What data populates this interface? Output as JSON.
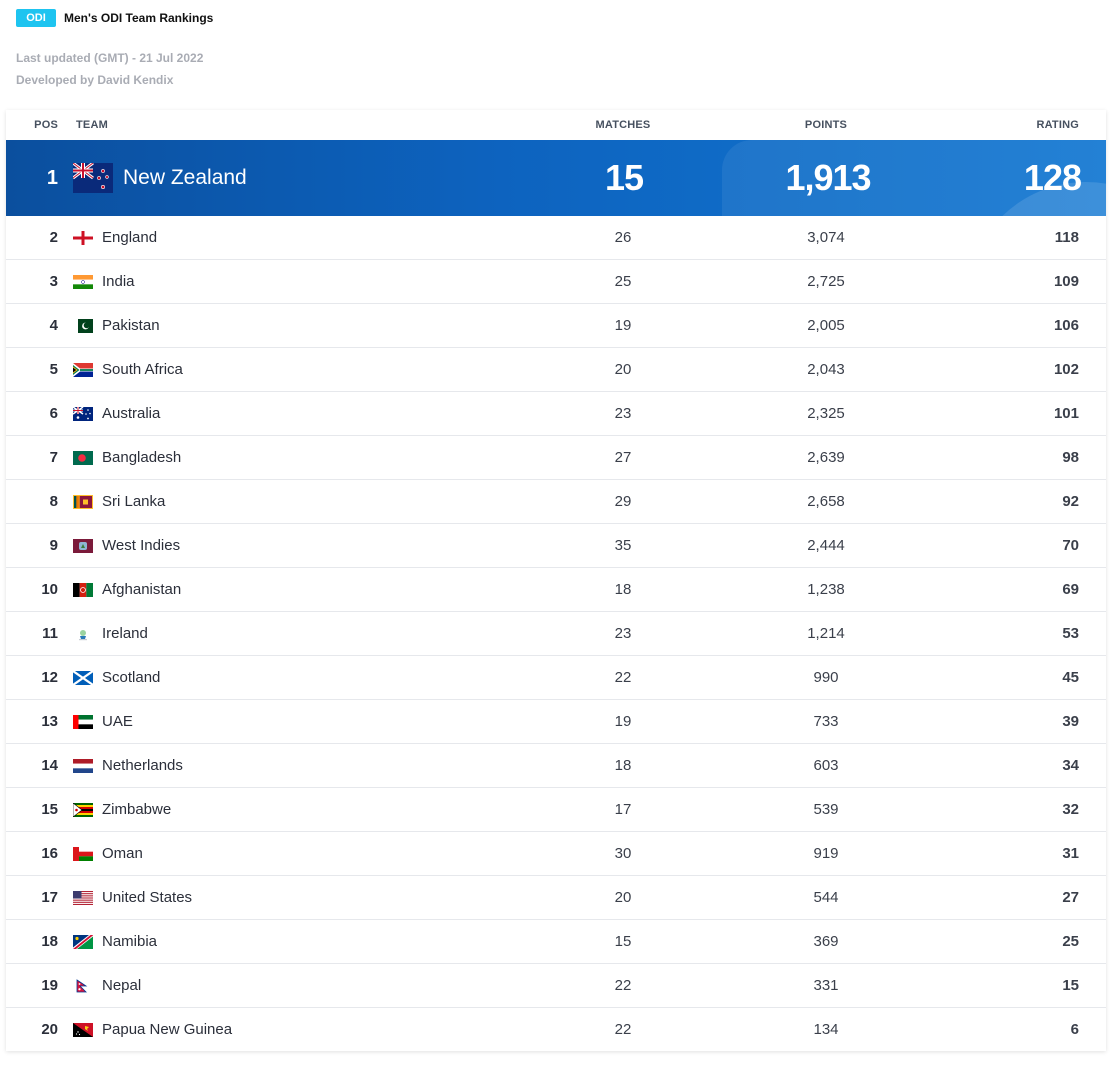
{
  "header": {
    "badge": "ODI",
    "title": "Men's ODI Team Rankings"
  },
  "meta": {
    "updated": "Last updated (GMT) - 21 Jul 2022",
    "developer": "Developed by David Kendix"
  },
  "columns": {
    "pos": "POS",
    "team": "TEAM",
    "matches": "MATCHES",
    "points": "POINTS",
    "rating": "RATING"
  },
  "top_team": {
    "pos": "1",
    "team": "New Zealand",
    "flag": "new-zealand-flag-icon",
    "matches": "15",
    "points": "1,913",
    "rating": "128"
  },
  "rows": [
    {
      "pos": "2",
      "team": "England",
      "flag": "england",
      "matches": "26",
      "points": "3,074",
      "rating": "118"
    },
    {
      "pos": "3",
      "team": "India",
      "flag": "india",
      "matches": "25",
      "points": "2,725",
      "rating": "109"
    },
    {
      "pos": "4",
      "team": "Pakistan",
      "flag": "pakistan",
      "matches": "19",
      "points": "2,005",
      "rating": "106"
    },
    {
      "pos": "5",
      "team": "South Africa",
      "flag": "south-africa",
      "matches": "20",
      "points": "2,043",
      "rating": "102"
    },
    {
      "pos": "6",
      "team": "Australia",
      "flag": "australia",
      "matches": "23",
      "points": "2,325",
      "rating": "101"
    },
    {
      "pos": "7",
      "team": "Bangladesh",
      "flag": "bangladesh",
      "matches": "27",
      "points": "2,639",
      "rating": "98"
    },
    {
      "pos": "8",
      "team": "Sri Lanka",
      "flag": "sri-lanka",
      "matches": "29",
      "points": "2,658",
      "rating": "92"
    },
    {
      "pos": "9",
      "team": "West Indies",
      "flag": "west-indies",
      "matches": "35",
      "points": "2,444",
      "rating": "70"
    },
    {
      "pos": "10",
      "team": "Afghanistan",
      "flag": "afghanistan",
      "matches": "18",
      "points": "1,238",
      "rating": "69"
    },
    {
      "pos": "11",
      "team": "Ireland",
      "flag": "ireland",
      "matches": "23",
      "points": "1,214",
      "rating": "53"
    },
    {
      "pos": "12",
      "team": "Scotland",
      "flag": "scotland",
      "matches": "22",
      "points": "990",
      "rating": "45"
    },
    {
      "pos": "13",
      "team": "UAE",
      "flag": "uae",
      "matches": "19",
      "points": "733",
      "rating": "39"
    },
    {
      "pos": "14",
      "team": "Netherlands",
      "flag": "netherlands",
      "matches": "18",
      "points": "603",
      "rating": "34"
    },
    {
      "pos": "15",
      "team": "Zimbabwe",
      "flag": "zimbabwe",
      "matches": "17",
      "points": "539",
      "rating": "32"
    },
    {
      "pos": "16",
      "team": "Oman",
      "flag": "oman",
      "matches": "30",
      "points": "919",
      "rating": "31"
    },
    {
      "pos": "17",
      "team": "United States",
      "flag": "united-states",
      "matches": "20",
      "points": "544",
      "rating": "27"
    },
    {
      "pos": "18",
      "team": "Namibia",
      "flag": "namibia",
      "matches": "15",
      "points": "369",
      "rating": "25"
    },
    {
      "pos": "19",
      "team": "Nepal",
      "flag": "nepal",
      "matches": "22",
      "points": "331",
      "rating": "15"
    },
    {
      "pos": "20",
      "team": "Papua New Guinea",
      "flag": "papua-new-guinea",
      "matches": "22",
      "points": "134",
      "rating": "6"
    }
  ]
}
